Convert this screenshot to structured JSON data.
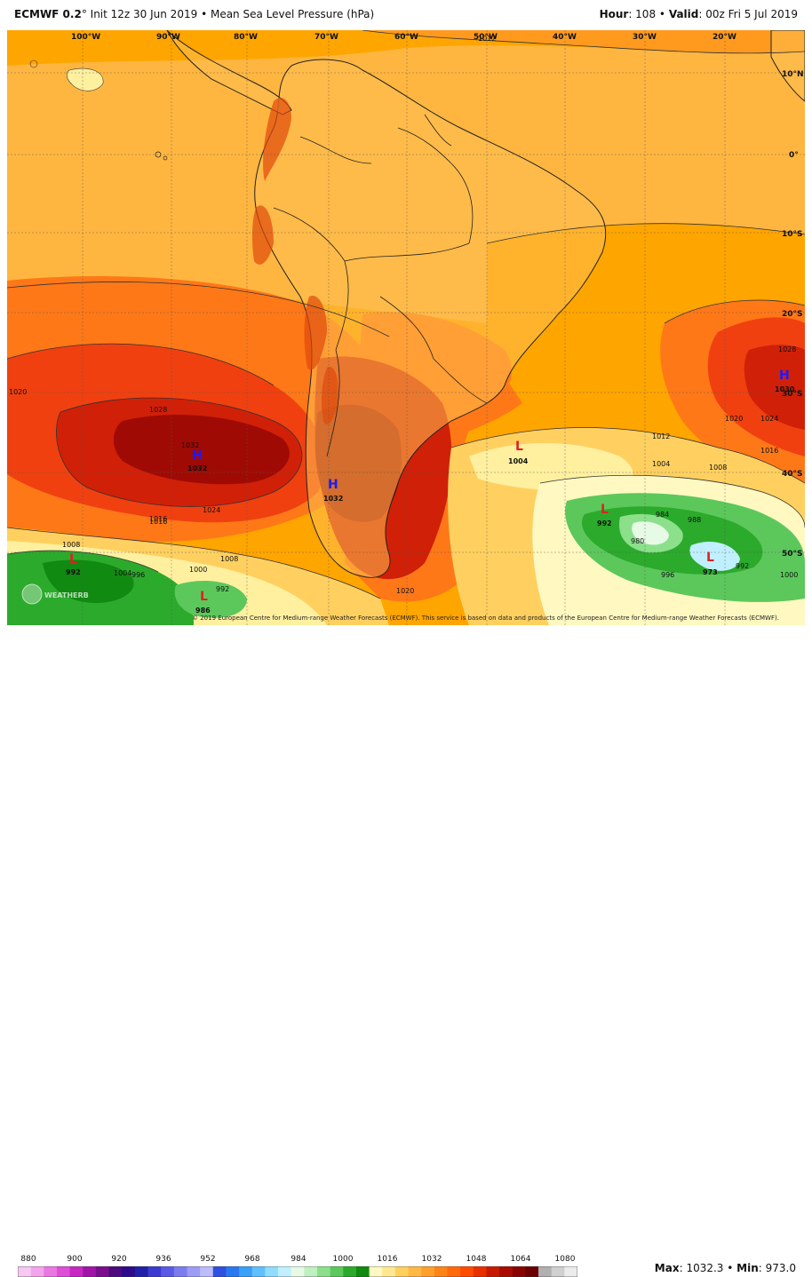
{
  "header": {
    "model": "ECMWF 0.2",
    "degree": "°",
    "init": "Init 12z 30 Jun 2019",
    "separator": "•",
    "product": "Mean Sea Level Pressure (hPa)",
    "hour_label": "Hour",
    "hour_value": "108",
    "valid_label": "Valid",
    "valid_value": "00z Fri 5 Jul 2019"
  },
  "longitude_labels": [
    "100°W",
    "90°W",
    "80°W",
    "70°W",
    "60°W",
    "50°W",
    "40°W",
    "30°W",
    "20°W"
  ],
  "latitude_labels": [
    "10°N",
    "0°",
    "10°S",
    "20°S",
    "30°S",
    "40°S",
    "50°S"
  ],
  "pressure_centers": [
    {
      "type": "H",
      "value": "1032",
      "color": "#1a1aff"
    },
    {
      "type": "H",
      "value": "1032",
      "color": "#1a1aff"
    },
    {
      "type": "H",
      "value": "1030",
      "color": "#1a1aff"
    },
    {
      "type": "L",
      "value": "1004",
      "color": "#e02020"
    },
    {
      "type": "L",
      "value": "992",
      "color": "#e02020"
    },
    {
      "type": "L",
      "value": "973",
      "color": "#e02020"
    },
    {
      "type": "L",
      "value": "992",
      "color": "#e02020"
    },
    {
      "type": "L",
      "value": "986",
      "color": "#e02020"
    }
  ],
  "contour_labels": [
    "1032",
    "1028",
    "1024",
    "1020",
    "1016",
    "1012",
    "1008",
    "1004",
    "1000",
    "996",
    "992",
    "988",
    "984",
    "980",
    "1020",
    "1024",
    "1028",
    "1016",
    "1012",
    "1008",
    "1004",
    "996",
    "992",
    "1000",
    "1008",
    "1016",
    "1020"
  ],
  "copyright": "© 2019 European Centre for Medium-range Weather Forecasts (ECMWF). This service is based on data and products of the European Centre for Medium-range Weather Forecasts (ECMWF).",
  "logo_text": "WEATHERBELL",
  "scale": {
    "labels": [
      "880",
      "900",
      "920",
      "936",
      "952",
      "968",
      "984",
      "1000",
      "1016",
      "1032",
      "1048",
      "1064",
      "1080"
    ],
    "colors": [
      "#f7c8f2",
      "#f2a4ec",
      "#ea78e2",
      "#de4fd6",
      "#c628c4",
      "#a015a8",
      "#7a0e8e",
      "#4d0a7e",
      "#2c0c8c",
      "#2020a8",
      "#3b3bd0",
      "#5a5ae6",
      "#7c7cf0",
      "#9c9cf6",
      "#bcbcfa",
      "#3050e0",
      "#2a78f0",
      "#3aa0f8",
      "#60c0ff",
      "#90dcff",
      "#c0f0ff",
      "#e6fae6",
      "#c0f0c0",
      "#8ce08c",
      "#5cc85c",
      "#2caa2c",
      "#108a10",
      "#fff8c0",
      "#ffe890",
      "#ffd060",
      "#ffb844",
      "#ffa02c",
      "#ff8418",
      "#ff6a0a",
      "#ff4c00",
      "#e83000",
      "#c81a00",
      "#a80c00",
      "#880400",
      "#6a0000",
      "#b0b0b0",
      "#d0d0d0",
      "#ececec"
    ]
  },
  "maxmin": {
    "max_label": "Max",
    "max_value": "1032.3",
    "min_label": "Min",
    "min_value": "973.0"
  }
}
